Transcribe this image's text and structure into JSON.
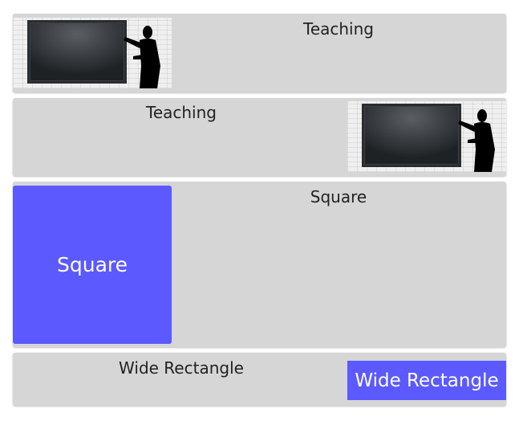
{
  "cards": [
    {
      "title": "Teaching"
    },
    {
      "title": "Teaching"
    },
    {
      "title": "Square",
      "tile_label": "Square"
    },
    {
      "title": "Wide Rectangle",
      "tile_label": "Wide Rectangle"
    }
  ],
  "colors": {
    "card_bg": "#d6d6d6",
    "tile_accent": "#5b59ff"
  }
}
